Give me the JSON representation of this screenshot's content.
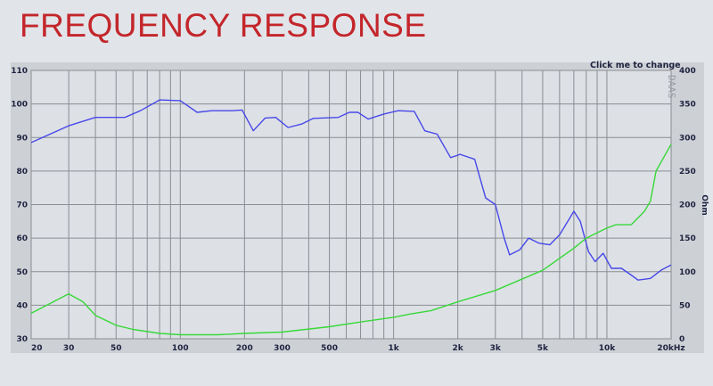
{
  "title": "FREQUENCY RESPONSE",
  "click_label": "Click me to change",
  "watermark": "DAAS",
  "colors": {
    "title": "#c3262b",
    "spl": "#4848e8",
    "impedance": "#38d838"
  },
  "chart_data": {
    "type": "line",
    "x_scale": "log",
    "xlim": [
      20,
      20000
    ],
    "ylim_left": [
      30,
      110
    ],
    "ylim_right": [
      0,
      400
    ],
    "ylabel_right": "Ohm",
    "grid": true,
    "x_ticks": [
      {
        "v": 20,
        "label": "20"
      },
      {
        "v": 30,
        "label": "30"
      },
      {
        "v": 50,
        "label": "50"
      },
      {
        "v": 100,
        "label": "100"
      },
      {
        "v": 200,
        "label": "200"
      },
      {
        "v": 300,
        "label": "300"
      },
      {
        "v": 500,
        "label": "500"
      },
      {
        "v": 1000,
        "label": "1k"
      },
      {
        "v": 2000,
        "label": "2k"
      },
      {
        "v": 3000,
        "label": "3k"
      },
      {
        "v": 5000,
        "label": "5k"
      },
      {
        "v": 10000,
        "label": "10k"
      },
      {
        "v": 20000,
        "label": "20kHz"
      }
    ],
    "y_ticks_left": [
      "110",
      "100",
      "90",
      "80",
      "70",
      "60",
      "50",
      "40",
      "30"
    ],
    "y_ticks_right": [
      "400",
      "350",
      "300",
      "250",
      "200",
      "150",
      "100",
      "50",
      "0"
    ],
    "series": [
      {
        "axis": "left",
        "color": "#4848e8",
        "points": [
          [
            20,
            88.5
          ],
          [
            30,
            93.5
          ],
          [
            40,
            96
          ],
          [
            55,
            96
          ],
          [
            65,
            98
          ],
          [
            80,
            101.2
          ],
          [
            100,
            101
          ],
          [
            120,
            97.5
          ],
          [
            140,
            98
          ],
          [
            175,
            98
          ],
          [
            195,
            98.2
          ],
          [
            220,
            92
          ],
          [
            250,
            95.8
          ],
          [
            280,
            96
          ],
          [
            320,
            93
          ],
          [
            370,
            94
          ],
          [
            420,
            95.7
          ],
          [
            550,
            96
          ],
          [
            620,
            97.5
          ],
          [
            680,
            97.5
          ],
          [
            760,
            95.5
          ],
          [
            900,
            97
          ],
          [
            1050,
            98
          ],
          [
            1250,
            97.8
          ],
          [
            1400,
            92
          ],
          [
            1600,
            91
          ],
          [
            1850,
            84
          ],
          [
            2050,
            85
          ],
          [
            2400,
            83.5
          ],
          [
            2700,
            72
          ],
          [
            3000,
            70
          ],
          [
            3300,
            60
          ],
          [
            3500,
            55
          ],
          [
            3900,
            56.5
          ],
          [
            4300,
            60
          ],
          [
            4800,
            58.5
          ],
          [
            5400,
            58
          ],
          [
            6000,
            61
          ],
          [
            7000,
            68
          ],
          [
            7500,
            65
          ],
          [
            8200,
            56
          ],
          [
            8800,
            53
          ],
          [
            9600,
            55.5
          ],
          [
            10500,
            51
          ],
          [
            11700,
            51
          ],
          [
            13000,
            49
          ],
          [
            14000,
            47.5
          ],
          [
            16000,
            48
          ],
          [
            18000,
            50.5
          ],
          [
            20000,
            52
          ]
        ]
      },
      {
        "axis": "right",
        "color": "#38d838",
        "points": [
          [
            20,
            38
          ],
          [
            30,
            67
          ],
          [
            35,
            55
          ],
          [
            40,
            35
          ],
          [
            50,
            20
          ],
          [
            60,
            14
          ],
          [
            80,
            8
          ],
          [
            100,
            6
          ],
          [
            150,
            6
          ],
          [
            200,
            8
          ],
          [
            300,
            10
          ],
          [
            500,
            18
          ],
          [
            700,
            25
          ],
          [
            1000,
            32
          ],
          [
            1200,
            37
          ],
          [
            1500,
            42
          ],
          [
            2000,
            55
          ],
          [
            3000,
            72
          ],
          [
            5000,
            102
          ],
          [
            7000,
            135
          ],
          [
            8000,
            150
          ],
          [
            10000,
            165
          ],
          [
            11000,
            170
          ],
          [
            13000,
            170
          ],
          [
            15000,
            190
          ],
          [
            16000,
            205
          ],
          [
            17000,
            250
          ],
          [
            20000,
            290
          ]
        ]
      }
    ]
  }
}
